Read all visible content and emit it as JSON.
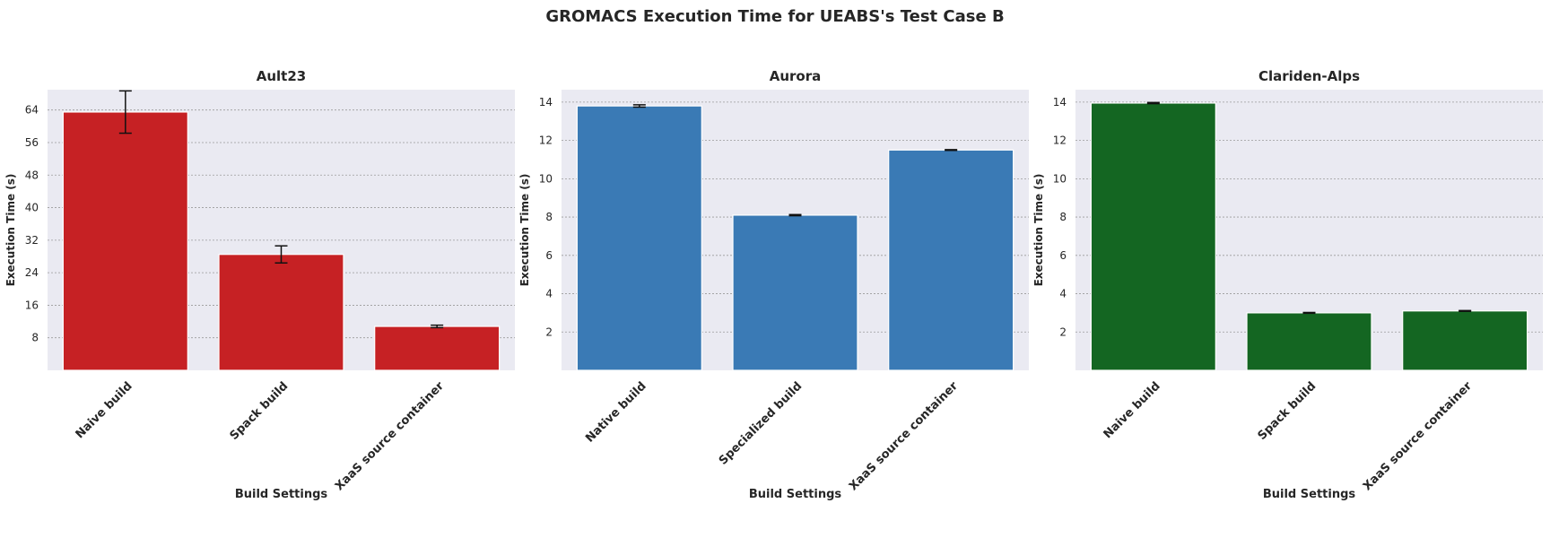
{
  "figure": {
    "title": "GROMACS Execution Time for UEABS's Test Case B"
  },
  "chart_data": [
    {
      "type": "bar",
      "title": "Ault23",
      "xlabel": "Build Settings",
      "ylabel": "Execution Time (s)",
      "categories": [
        "Naive build",
        "Spack build",
        "XaaS source container"
      ],
      "values": [
        63.5,
        28.5,
        10.8
      ],
      "errors": [
        5.2,
        2.1,
        0.3
      ],
      "ylim": [
        0,
        69
      ],
      "yticks": [
        8,
        16,
        24,
        32,
        40,
        48,
        56,
        64
      ],
      "color": "#c62124",
      "grid": true
    },
    {
      "type": "bar",
      "title": "Aurora",
      "xlabel": "Build Settings",
      "ylabel": "Execution Time (s)",
      "categories": [
        "Native build",
        "Specialized build",
        "XaaS source container"
      ],
      "values": [
        13.8,
        8.1,
        11.5
      ],
      "errors": [
        0.06,
        0.03,
        0.02
      ],
      "ylim": [
        0,
        14.65
      ],
      "yticks": [
        2,
        4,
        6,
        8,
        10,
        12,
        14
      ],
      "color": "#3a7ab5",
      "grid": true
    },
    {
      "type": "bar",
      "title": "Clariden-Alps",
      "xlabel": "Build Settings",
      "ylabel": "Execution Time (s)",
      "categories": [
        "Naive build",
        "Spack build",
        "XaaS source container"
      ],
      "values": [
        13.95,
        3.0,
        3.1
      ],
      "errors": [
        0.03,
        0.02,
        0.02
      ],
      "ylim": [
        0,
        14.65
      ],
      "yticks": [
        2,
        4,
        6,
        8,
        10,
        12,
        14
      ],
      "color": "#146622",
      "grid": true
    }
  ]
}
